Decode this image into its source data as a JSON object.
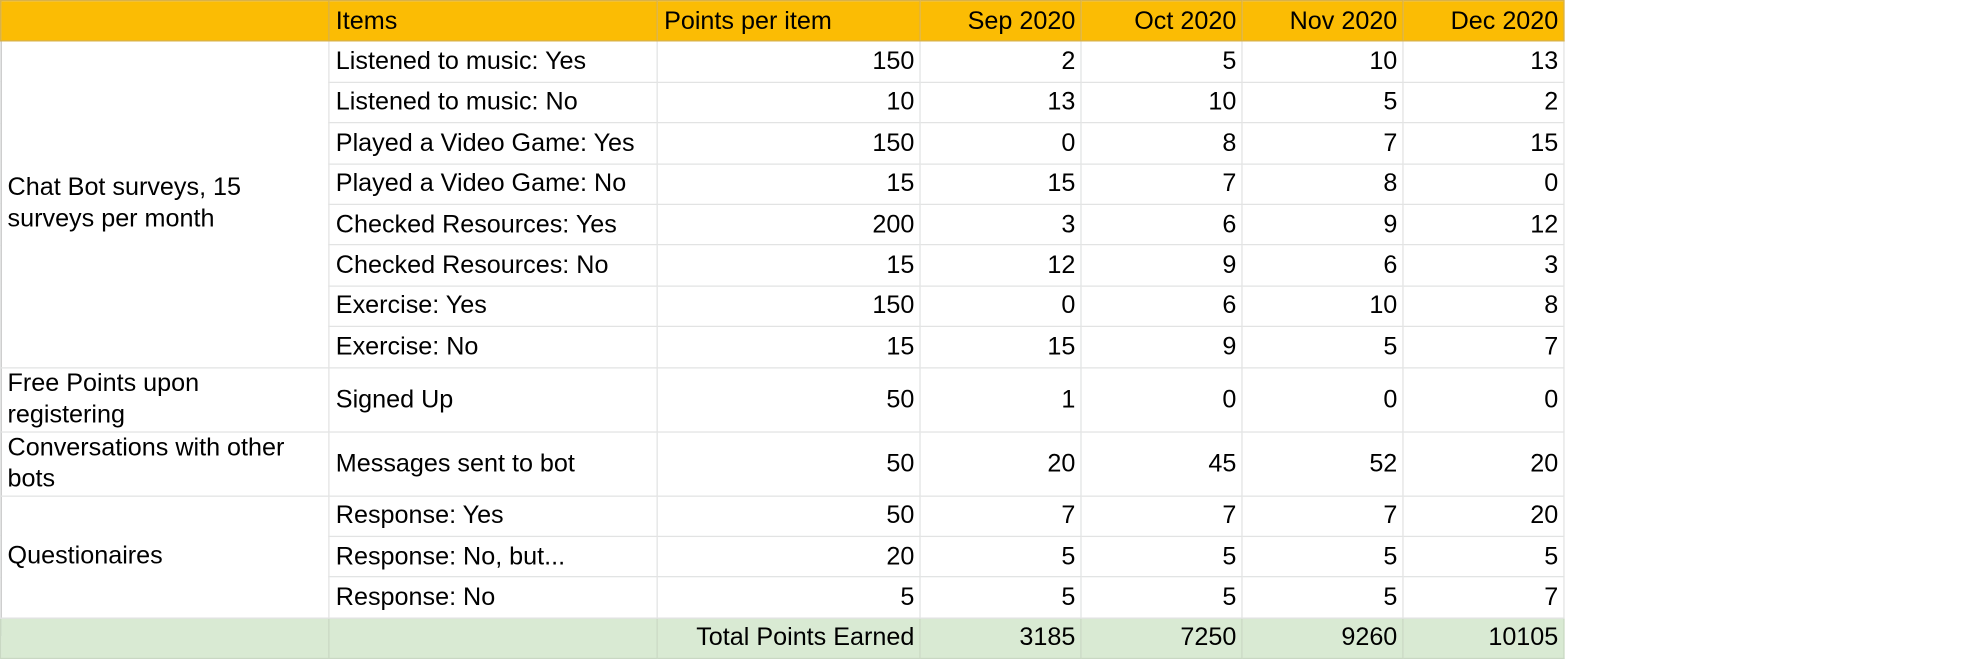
{
  "header": {
    "items": "Items",
    "points": "Points per item",
    "months": [
      "Sep 2020",
      "Oct 2020",
      "Nov 2020",
      "Dec 2020"
    ]
  },
  "groups": [
    {
      "label": "Chat Bot surveys, 15 surveys per month",
      "rows": [
        {
          "item": "Listened to music: Yes",
          "points": "150",
          "values": [
            "2",
            "5",
            "10",
            "13"
          ]
        },
        {
          "item": "Listened to music: No",
          "points": "10",
          "values": [
            "13",
            "10",
            "5",
            "2"
          ]
        },
        {
          "item": "Played a Video Game: Yes",
          "points": "150",
          "values": [
            "0",
            "8",
            "7",
            "15"
          ]
        },
        {
          "item": "Played a Video Game: No",
          "points": "15",
          "values": [
            "15",
            "7",
            "8",
            "0"
          ]
        },
        {
          "item": "Checked Resources: Yes",
          "points": "200",
          "values": [
            "3",
            "6",
            "9",
            "12"
          ]
        },
        {
          "item": "Checked Resources: No",
          "points": "15",
          "values": [
            "12",
            "9",
            "6",
            "3"
          ]
        },
        {
          "item": "Exercise: Yes",
          "points": "150",
          "values": [
            "0",
            "6",
            "10",
            "8"
          ]
        },
        {
          "item": "Exercise: No",
          "points": "15",
          "values": [
            "15",
            "9",
            "5",
            "7"
          ]
        }
      ]
    },
    {
      "label": "Free Points upon registering",
      "rows": [
        {
          "item": "Signed Up",
          "points": "50",
          "values": [
            "1",
            "0",
            "0",
            "0"
          ]
        }
      ]
    },
    {
      "label": "Conversations with other bots",
      "rows": [
        {
          "item": "Messages sent to bot",
          "points": "50",
          "values": [
            "20",
            "45",
            "52",
            "20"
          ]
        }
      ]
    },
    {
      "label": "Questionaires",
      "rows": [
        {
          "item": "Response: Yes",
          "points": "50",
          "values": [
            "7",
            "7",
            "7",
            "20"
          ]
        },
        {
          "item": "Response: No, but...",
          "points": "20",
          "values": [
            "5",
            "5",
            "5",
            "5"
          ]
        },
        {
          "item": "Response: No",
          "points": "5",
          "values": [
            "5",
            "5",
            "5",
            "7"
          ]
        }
      ]
    }
  ],
  "totals": {
    "label": "Total Points Earned",
    "values": [
      "3185",
      "7250",
      "9260",
      "10105"
    ]
  },
  "colors": {
    "header_bg": "#fbbc04",
    "total_bg": "#d9ead3",
    "gridline": "#e2e3e3"
  }
}
